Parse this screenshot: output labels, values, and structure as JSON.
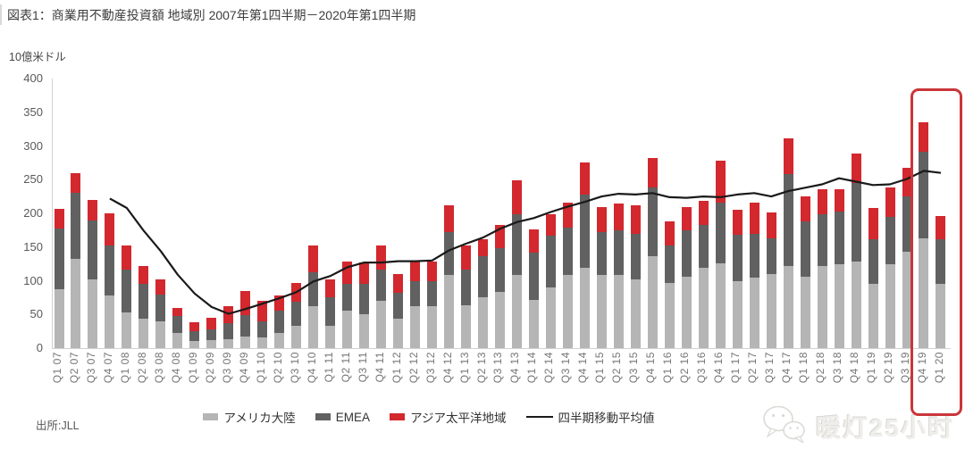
{
  "title": "図表1：商業用不動産投資額 地域別 2007年第1四半期－2020年第1四半期",
  "y_axis_unit": "10億米ドル",
  "source": "出所:JLL",
  "watermark": "暖灯25小时",
  "colors": {
    "bar_americas": "#b5b5b5",
    "bar_emea": "#616161",
    "bar_apac": "#d2282e",
    "ma_line": "#1a1a1a",
    "highlight_box": "#c9363a",
    "axis": "#d2d2d2",
    "title_text": "#3d3d3d",
    "ytick_text": "#595959",
    "xtick_text": "#757575"
  },
  "highlight": {
    "quarters": [
      "Q4 19",
      "Q1 20"
    ]
  },
  "chart_data": {
    "type": "bar",
    "stacked": true,
    "title": "商業用不動産投資額 地域別",
    "ylabel": "10億米ドル",
    "ylim": [
      0,
      400
    ],
    "ytick_step": 50,
    "grid": false,
    "legend_position": "bottom",
    "categories": [
      "Q1 07",
      "Q2 07",
      "Q3 07",
      "Q4 07",
      "Q1 08",
      "Q2 08",
      "Q3 08",
      "Q4 08",
      "Q1 09",
      "Q2 09",
      "Q3 09",
      "Q4 09",
      "Q1 10",
      "Q2 10",
      "Q3 10",
      "Q4 10",
      "Q1 11",
      "Q2 11",
      "Q3 11",
      "Q4 11",
      "Q1 12",
      "Q2 12",
      "Q3 12",
      "Q4 12",
      "Q1 13",
      "Q2 13",
      "Q3 13",
      "Q4 13",
      "Q1 14",
      "Q2 14",
      "Q3 14",
      "Q4 14",
      "Q1 15",
      "Q2 15",
      "Q3 15",
      "Q4 15",
      "Q1 16",
      "Q2 16",
      "Q3 16",
      "Q4 16",
      "Q1 17",
      "Q2 17",
      "Q3 17",
      "Q4 17",
      "Q1 18",
      "Q2 18",
      "Q3 18",
      "Q4 18",
      "Q1 19",
      "Q2 19",
      "Q3 19",
      "Q4 19",
      "Q1 20"
    ],
    "series": [
      {
        "name": "アメリカ大陸",
        "color": "#b5b5b5",
        "values": [
          87,
          133,
          102,
          78,
          53,
          44,
          40,
          22,
          10,
          12,
          13,
          17,
          16,
          23,
          33,
          62,
          33,
          56,
          50,
          70,
          44,
          62,
          62,
          109,
          64,
          76,
          84,
          109,
          72,
          90,
          108,
          119,
          109,
          109,
          102,
          137,
          97,
          106,
          119,
          126,
          99,
          104,
          110,
          122,
          106,
          122,
          124,
          128,
          95,
          124,
          143,
          163,
          95
        ]
      },
      {
        "name": "EMEA",
        "color": "#616161",
        "values": [
          90,
          97,
          88,
          75,
          64,
          51,
          39,
          26,
          15,
          16,
          24,
          32,
          24,
          33,
          36,
          50,
          43,
          39,
          45,
          47,
          38,
          37,
          37,
          63,
          53,
          61,
          64,
          90,
          70,
          77,
          71,
          109,
          63,
          66,
          68,
          102,
          55,
          69,
          64,
          90,
          69,
          66,
          53,
          136,
          82,
          77,
          79,
          117,
          67,
          71,
          82,
          129,
          67
        ]
      },
      {
        "name": "アジア太平洋地域",
        "color": "#d2282e",
        "values": [
          30,
          30,
          30,
          47,
          36,
          27,
          23,
          12,
          13,
          17,
          25,
          36,
          30,
          22,
          28,
          40,
          26,
          33,
          32,
          35,
          28,
          29,
          29,
          40,
          35,
          25,
          35,
          50,
          34,
          32,
          37,
          48,
          37,
          40,
          42,
          43,
          36,
          34,
          36,
          62,
          37,
          46,
          38,
          53,
          37,
          37,
          33,
          44,
          46,
          44,
          43,
          43,
          34
        ]
      }
    ],
    "line_series": {
      "name": "四半期移動平均値",
      "color": "#1a1a1a",
      "values": [
        null,
        null,
        null,
        222,
        208,
        174,
        144,
        109,
        81,
        61,
        51,
        58,
        66,
        74,
        83,
        99,
        107,
        120,
        127,
        127,
        129,
        129,
        130,
        145,
        155,
        164,
        177,
        187,
        193,
        202,
        210,
        217,
        225,
        229,
        228,
        230,
        224,
        223,
        225,
        224,
        228,
        230,
        225,
        233,
        238,
        243,
        252,
        247,
        242,
        243,
        251,
        263,
        260
      ]
    }
  }
}
